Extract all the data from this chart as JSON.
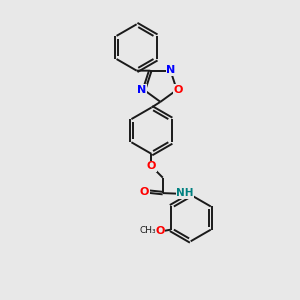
{
  "background_color": "#e8e8e8",
  "bond_color": "#1a1a1a",
  "N_color": "#0000ff",
  "O_color": "#ff0000",
  "NH_color": "#008080",
  "line_width": 1.4,
  "figsize": [
    3.0,
    3.0
  ],
  "dpi": 100,
  "xlim": [
    0,
    10
  ],
  "ylim": [
    0,
    10
  ]
}
